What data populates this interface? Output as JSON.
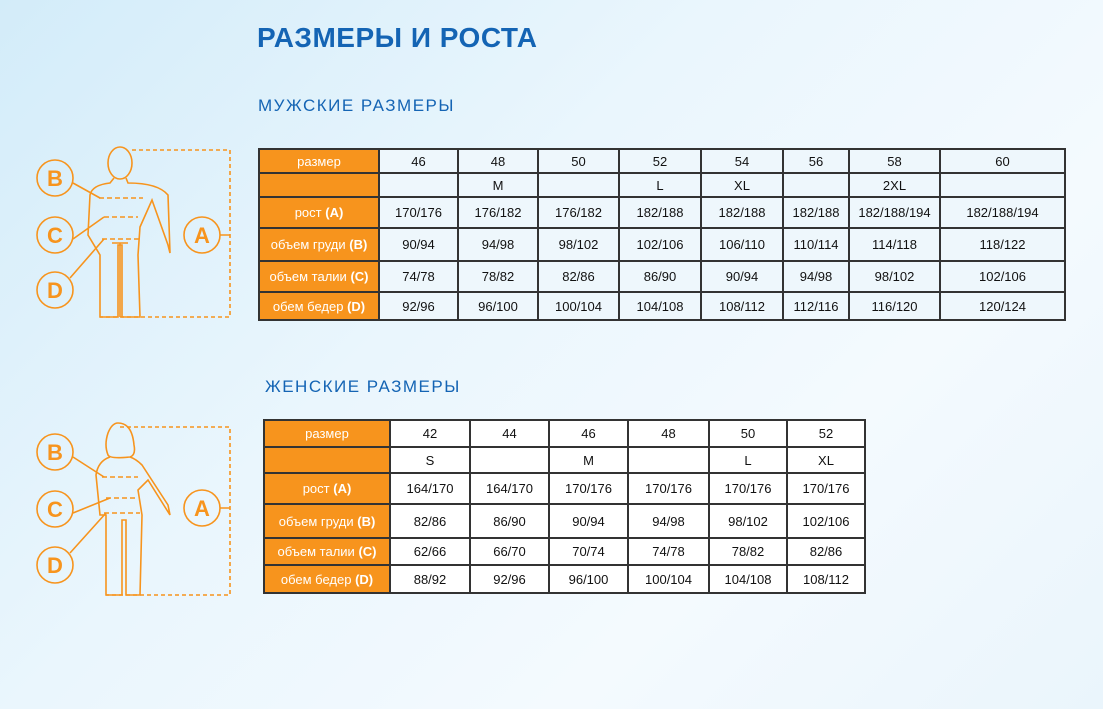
{
  "title": "РАЗМЕРЫ И РОСТА",
  "colors": {
    "accent": "#f7941d",
    "heading": "#1464b4"
  },
  "figure_letters": [
    "B",
    "C",
    "D",
    "A"
  ],
  "men": {
    "heading": "МУЖСКИЕ РАЗМЕРЫ",
    "rows": [
      {
        "label": "размер",
        "letter": "",
        "cells": [
          "46",
          "48",
          "50",
          "52",
          "54",
          "56",
          "58",
          "60"
        ]
      },
      {
        "label": "",
        "letter": "",
        "cells": [
          "",
          "M",
          "",
          "L",
          "XL",
          "",
          "2XL",
          ""
        ]
      },
      {
        "label": "рост",
        "letter": "(A)",
        "cells": [
          "170/176",
          "176/182",
          "176/182",
          "182/188",
          "182/188",
          "182/188",
          "182/188/194",
          "182/188/194"
        ]
      },
      {
        "label": "объем груди",
        "letter": "(B)",
        "cells": [
          "90/94",
          "94/98",
          "98/102",
          "102/106",
          "106/110",
          "110/114",
          "114/118",
          "118/122"
        ]
      },
      {
        "label": "объем талии",
        "letter": "(C)",
        "cells": [
          "74/78",
          "78/82",
          "82/86",
          "86/90",
          "90/94",
          "94/98",
          "98/102",
          "102/106"
        ]
      },
      {
        "label": "обем бедер",
        "letter": "(D)",
        "cells": [
          "92/96",
          "96/100",
          "100/104",
          "104/108",
          "108/112",
          "112/116",
          "116/120",
          "120/124"
        ]
      }
    ]
  },
  "women": {
    "heading": "ЖЕНСКИЕ РАЗМЕРЫ",
    "rows": [
      {
        "label": "размер",
        "letter": "",
        "cells": [
          "42",
          "44",
          "46",
          "48",
          "50",
          "52"
        ]
      },
      {
        "label": "",
        "letter": "",
        "cells": [
          "S",
          "",
          "M",
          "",
          "L",
          "XL"
        ]
      },
      {
        "label": "рост",
        "letter": "(A)",
        "cells": [
          "164/170",
          "164/170",
          "170/176",
          "170/176",
          "170/176",
          "170/176"
        ]
      },
      {
        "label": "объем груди",
        "letter": "(B)",
        "cells": [
          "82/86",
          "86/90",
          "90/94",
          "94/98",
          "98/102",
          "102/106"
        ]
      },
      {
        "label": "объем талии",
        "letter": "(C)",
        "cells": [
          "62/66",
          "66/70",
          "70/74",
          "74/78",
          "78/82",
          "82/86"
        ]
      },
      {
        "label": "обем бедер",
        "letter": "(D)",
        "cells": [
          "88/92",
          "92/96",
          "96/100",
          "100/104",
          "104/108",
          "108/112"
        ]
      }
    ]
  }
}
